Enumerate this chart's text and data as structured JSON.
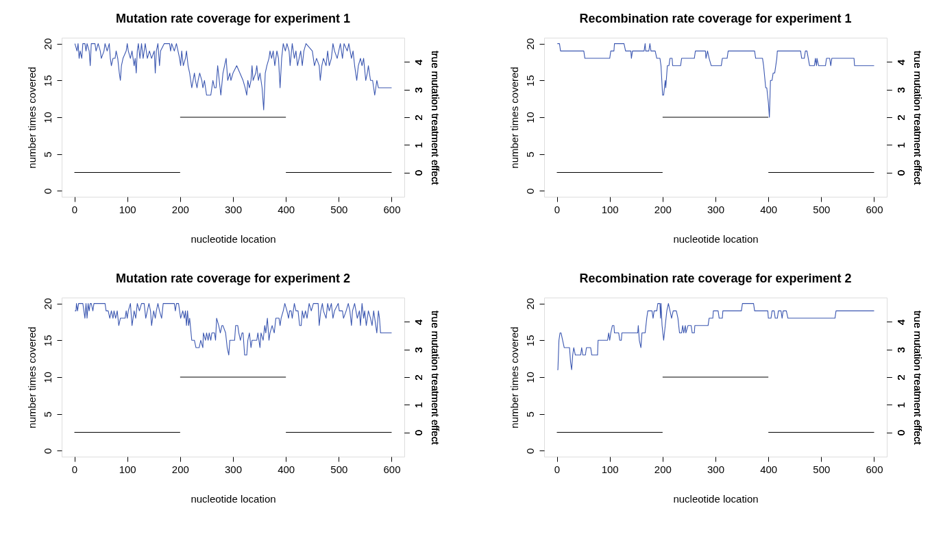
{
  "chart_data": [
    {
      "type": "line",
      "title": "Mutation rate coverage for experiment 1",
      "xlabel": "nucleotide location",
      "ylabel": "number times covered",
      "y2label": "true mutation treatment effect",
      "xlim": [
        -24,
        624
      ],
      "xticks": [
        0,
        100,
        200,
        300,
        400,
        500,
        600
      ],
      "ylim": [
        -0.8,
        20.8
      ],
      "yticks": [
        0,
        5,
        10,
        15,
        20
      ],
      "y2lim": [
        -0.88,
        4.88
      ],
      "y2ticks": [
        0,
        1,
        2,
        3,
        4
      ],
      "grid": false,
      "series": [
        {
          "color": "#3a56b0",
          "x": [
            1,
            5,
            7,
            9,
            11,
            14,
            16,
            20,
            22,
            24,
            28,
            30,
            32,
            39,
            41,
            45,
            49,
            51,
            56,
            58,
            62,
            66,
            68,
            70,
            73,
            77,
            79,
            82,
            85,
            87,
            89,
            92,
            98,
            100,
            102,
            106,
            109,
            113,
            115,
            117,
            119,
            121,
            124,
            127,
            130,
            134,
            138,
            142,
            146,
            151,
            153,
            155,
            158,
            161,
            163,
            170,
            180,
            182,
            184,
            189,
            193,
            196,
            199,
            201,
            203,
            206,
            210,
            212,
            215,
            218,
            222,
            227,
            229,
            232,
            234,
            237,
            241,
            243,
            246,
            250,
            258,
            260,
            262,
            265,
            268,
            271,
            274,
            277,
            281,
            284,
            287,
            290,
            294,
            296,
            300,
            307,
            313,
            319,
            323,
            326,
            328,
            331,
            334,
            336,
            338,
            343,
            345,
            348,
            351,
            355,
            357,
            358,
            361,
            364,
            368,
            370,
            373,
            376,
            379,
            383,
            386,
            389,
            392,
            395,
            399,
            402,
            406,
            408,
            412,
            416,
            419,
            422,
            425,
            428,
            431,
            434,
            438,
            450,
            454,
            458,
            463,
            465,
            468,
            471,
            476,
            479,
            482,
            486,
            489,
            492,
            497,
            500,
            503,
            507,
            510,
            516,
            519,
            524,
            527,
            530,
            534,
            537,
            541,
            544,
            547,
            551,
            554,
            556,
            560,
            564,
            566,
            568,
            572,
            575,
            600
          ],
          "values": [
            20,
            19,
            20,
            18,
            19,
            18,
            20,
            20,
            19,
            20,
            19,
            17,
            20,
            20,
            19,
            20,
            19,
            18,
            19,
            20,
            19,
            20,
            18,
            17,
            18,
            18,
            19,
            18,
            16,
            15,
            17,
            18,
            19,
            20,
            19,
            18,
            19,
            17,
            18,
            16,
            19,
            20,
            18,
            20,
            18,
            20,
            18,
            19,
            18,
            19,
            16,
            19,
            20,
            17,
            19,
            20,
            20,
            19,
            20,
            19,
            20,
            19,
            18,
            17,
            19,
            17,
            18,
            19,
            17,
            16,
            14,
            16,
            15,
            14,
            15,
            16,
            15,
            14,
            15,
            13,
            13,
            14,
            15,
            14,
            14,
            17,
            15,
            13,
            16,
            17,
            18,
            15,
            16,
            15,
            16,
            17,
            16,
            15,
            14,
            13,
            15,
            14,
            15,
            17,
            15,
            16,
            17,
            15,
            16,
            14,
            12,
            11,
            16,
            17,
            18,
            19,
            18,
            19,
            17,
            19,
            18,
            14,
            18,
            20,
            19,
            20,
            19,
            17,
            20,
            18,
            19,
            17,
            18,
            19,
            17,
            19,
            20,
            19,
            17,
            18,
            17,
            15,
            17,
            18,
            17,
            19,
            17,
            18,
            20,
            19,
            18,
            19,
            20,
            18,
            20,
            19,
            20,
            18,
            19,
            17,
            15,
            17,
            18,
            17,
            18,
            15,
            16,
            17,
            15,
            15,
            14,
            13,
            15,
            14,
            14
          ]
        },
        {
          "color": "#000000",
          "axis": "y2",
          "x": [
            0,
            200
          ],
          "values": [
            0,
            0
          ]
        },
        {
          "color": "#000000",
          "axis": "y2",
          "x": [
            200,
            400
          ],
          "values": [
            2,
            2
          ]
        },
        {
          "color": "#000000",
          "axis": "y2",
          "x": [
            400,
            600
          ],
          "values": [
            0,
            0
          ]
        }
      ]
    },
    {
      "type": "line",
      "title": "Recombination rate coverage for experiment 1",
      "xlabel": "nucleotide location",
      "ylabel": "number times covered",
      "y2label": "true mutation treatment effect",
      "xlim": [
        -24,
        624
      ],
      "xticks": [
        0,
        100,
        200,
        300,
        400,
        500,
        600
      ],
      "ylim": [
        -0.8,
        20.8
      ],
      "yticks": [
        0,
        5,
        10,
        15,
        20
      ],
      "y2lim": [
        -0.88,
        4.88
      ],
      "y2ticks": [
        0,
        1,
        2,
        3,
        4
      ],
      "grid": false,
      "series": [
        {
          "color": "#3a56b0",
          "x": [
            1,
            5,
            7,
            51,
            53,
            100,
            102,
            108,
            109,
            127,
            130,
            140,
            141,
            143,
            165,
            167,
            168,
            174,
            176,
            178,
            186,
            189,
            195,
            197,
            200,
            202,
            205,
            206,
            209,
            212,
            214,
            218,
            219,
            234,
            236,
            260,
            262,
            281,
            282,
            285,
            288,
            292,
            311,
            313,
            322,
            324,
            374,
            376,
            389,
            391,
            395,
            397,
            400,
            402,
            404,
            407,
            409,
            412,
            414,
            416,
            417,
            461,
            463,
            468,
            470,
            473,
            478,
            487,
            489,
            491,
            492,
            495,
            508,
            510,
            516,
            518,
            520,
            562,
            563,
            600
          ],
          "values": [
            20,
            20,
            19,
            19,
            18,
            18,
            19,
            19,
            20,
            20,
            19,
            19,
            18,
            19,
            19,
            20,
            19,
            19,
            20,
            19,
            19,
            18,
            18,
            17,
            13,
            13,
            15,
            14,
            17,
            17,
            18,
            18,
            17,
            17,
            18,
            18,
            19,
            19,
            18,
            19,
            18,
            17,
            17,
            18,
            18,
            19,
            19,
            18,
            18,
            17,
            14,
            14,
            12,
            10,
            15,
            15,
            16,
            16,
            17,
            18,
            19,
            19,
            18,
            18,
            19,
            19,
            17,
            17,
            18,
            17,
            18,
            17,
            17,
            18,
            18,
            17,
            18,
            18,
            17,
            17
          ]
        },
        {
          "color": "#000000",
          "axis": "y2",
          "x": [
            0,
            200
          ],
          "values": [
            0,
            0
          ]
        },
        {
          "color": "#000000",
          "axis": "y2",
          "x": [
            200,
            400
          ],
          "values": [
            2,
            2
          ]
        },
        {
          "color": "#000000",
          "axis": "y2",
          "x": [
            400,
            600
          ],
          "values": [
            0,
            0
          ]
        }
      ]
    },
    {
      "type": "line",
      "title": "Mutation rate coverage for experiment 2",
      "xlabel": "nucleotide location",
      "ylabel": "number times covered",
      "y2label": "true mutation treatment effect",
      "xlim": [
        -24,
        624
      ],
      "xticks": [
        0,
        100,
        200,
        300,
        400,
        500,
        600
      ],
      "ylim": [
        -0.8,
        20.8
      ],
      "yticks": [
        0,
        5,
        10,
        15,
        20
      ],
      "y2lim": [
        -0.88,
        4.88
      ],
      "y2ticks": [
        0,
        1,
        2,
        3,
        4
      ],
      "grid": false,
      "series": [
        {
          "color": "#3a56b0",
          "x": [
            1,
            3,
            4,
            6,
            8,
            16,
            18,
            20,
            22,
            24,
            26,
            28,
            30,
            32,
            35,
            37,
            58,
            60,
            64,
            67,
            70,
            73,
            75,
            78,
            81,
            84,
            87,
            96,
            98,
            100,
            102,
            106,
            109,
            113,
            116,
            119,
            123,
            127,
            132,
            135,
            138,
            141,
            144,
            146,
            150,
            153,
            155,
            158,
            161,
            165,
            168,
            172,
            189,
            191,
            193,
            197,
            201,
            205,
            208,
            210,
            212,
            214,
            216,
            218,
            222,
            227,
            230,
            236,
            239,
            243,
            244,
            248,
            250,
            253,
            255,
            258,
            260,
            265,
            267,
            269,
            273,
            276,
            279,
            281,
            286,
            289,
            292,
            294,
            303,
            305,
            309,
            311,
            314,
            317,
            319,
            322,
            326,
            328,
            331,
            334,
            336,
            345,
            347,
            349,
            351,
            353,
            357,
            360,
            362,
            365,
            368,
            370,
            374,
            378,
            381,
            387,
            389,
            391,
            395,
            398,
            402,
            405,
            407,
            410,
            412,
            416,
            419,
            423,
            426,
            429,
            431,
            434,
            437,
            440,
            444,
            448,
            452,
            461,
            463,
            466,
            469,
            471,
            476,
            479,
            482,
            486,
            489,
            492,
            499,
            501,
            507,
            509,
            514,
            518,
            521,
            524,
            526,
            530,
            535,
            539,
            541,
            544,
            547,
            549,
            552,
            556,
            560,
            563,
            566,
            568,
            572,
            575,
            577,
            579,
            600
          ],
          "values": [
            19,
            19,
            20,
            19,
            20,
            20,
            19,
            18,
            20,
            18,
            20,
            19,
            20,
            20,
            19,
            20,
            20,
            19,
            19,
            18,
            19,
            18,
            19,
            18,
            19,
            17,
            18,
            18,
            19,
            18,
            19,
            20,
            17,
            19,
            18,
            20,
            19,
            20,
            20,
            18,
            19,
            20,
            19,
            17,
            19,
            18,
            19,
            20,
            19,
            18,
            20,
            20,
            20,
            19,
            20,
            20,
            18,
            19,
            18,
            19,
            17,
            19,
            17,
            18,
            15,
            15,
            14,
            14,
            15,
            14,
            16,
            15,
            16,
            15,
            16,
            15,
            16,
            16,
            15,
            18,
            17,
            16,
            17,
            17,
            16,
            14,
            13,
            15,
            15,
            17,
            17,
            16,
            15,
            16,
            16,
            13,
            13,
            15,
            16,
            14,
            15,
            15,
            16,
            15,
            14,
            16,
            15,
            17,
            16,
            18,
            15,
            16,
            17,
            16,
            18,
            18,
            17,
            18,
            19,
            20,
            19,
            18,
            19,
            19,
            18,
            20,
            19,
            19,
            17,
            17,
            19,
            18,
            19,
            18,
            20,
            19,
            20,
            20,
            17,
            19,
            20,
            19,
            18,
            20,
            19,
            20,
            18,
            19,
            20,
            19,
            19,
            18,
            19,
            20,
            19,
            17,
            19,
            20,
            18,
            19,
            17,
            20,
            18,
            19,
            17,
            19,
            18,
            17,
            19,
            18,
            16,
            19,
            18,
            16,
            16
          ]
        },
        {
          "color": "#000000",
          "axis": "y2",
          "x": [
            0,
            200
          ],
          "values": [
            0,
            0
          ]
        },
        {
          "color": "#000000",
          "axis": "y2",
          "x": [
            200,
            400
          ],
          "values": [
            2,
            2
          ]
        },
        {
          "color": "#000000",
          "axis": "y2",
          "x": [
            400,
            600
          ],
          "values": [
            0,
            0
          ]
        }
      ]
    },
    {
      "type": "line",
      "title": "Recombination rate coverage for experiment 2",
      "xlabel": "nucleotide location",
      "ylabel": "number times covered",
      "y2label": "true mutation treatment effect",
      "xlim": [
        -24,
        624
      ],
      "xticks": [
        0,
        100,
        200,
        300,
        400,
        500,
        600
      ],
      "ylim": [
        -0.8,
        20.8
      ],
      "yticks": [
        0,
        5,
        10,
        15,
        20
      ],
      "y2lim": [
        -0.88,
        4.88
      ],
      "y2ticks": [
        0,
        1,
        2,
        3,
        4
      ],
      "grid": false,
      "series": [
        {
          "color": "#3a56b0",
          "x": [
            1,
            2,
            4,
            6,
            8,
            11,
            14,
            24,
            26,
            28,
            30,
            32,
            35,
            45,
            47,
            49,
            54,
            56,
            64,
            66,
            77,
            78,
            96,
            98,
            100,
            102,
            105,
            108,
            109,
            117,
            119,
            122,
            123,
            153,
            154,
            156,
            159,
            161,
            167,
            170,
            172,
            174,
            180,
            182,
            184,
            189,
            191,
            195,
            196,
            197,
            199,
            202,
            205,
            208,
            211,
            214,
            217,
            220,
            226,
            229,
            232,
            236,
            238,
            240,
            243,
            244,
            248,
            254,
            256,
            260,
            261,
            286,
            288,
            295,
            296,
            305,
            307,
            313,
            314,
            349,
            351,
            372,
            374,
            399,
            400,
            405,
            407,
            411,
            413,
            417,
            419,
            424,
            426,
            428,
            434,
            437,
            526,
            528,
            600
          ],
          "values": [
            11,
            11,
            15,
            16,
            16,
            15,
            14,
            14,
            12,
            11,
            13,
            14,
            13,
            13,
            14,
            13,
            13,
            14,
            14,
            13,
            13,
            15,
            15,
            16,
            15,
            16,
            17,
            17,
            16,
            16,
            15,
            15,
            16,
            16,
            17,
            15,
            14,
            16,
            16,
            18,
            19,
            19,
            19,
            18,
            19,
            19,
            20,
            20,
            18,
            20,
            17,
            15,
            17,
            19,
            20,
            19,
            18,
            19,
            19,
            18,
            16,
            16,
            17,
            16,
            17,
            16,
            17,
            17,
            16,
            16,
            17,
            17,
            18,
            18,
            19,
            19,
            18,
            18,
            19,
            19,
            20,
            20,
            19,
            19,
            18,
            18,
            19,
            19,
            18,
            18,
            19,
            19,
            18,
            19,
            19,
            18,
            18,
            19,
            19
          ]
        },
        {
          "color": "#000000",
          "axis": "y2",
          "x": [
            0,
            200
          ],
          "values": [
            0,
            0
          ]
        },
        {
          "color": "#000000",
          "axis": "y2",
          "x": [
            200,
            400
          ],
          "values": [
            2,
            2
          ]
        },
        {
          "color": "#000000",
          "axis": "y2",
          "x": [
            400,
            600
          ],
          "values": [
            0,
            0
          ]
        }
      ]
    }
  ]
}
